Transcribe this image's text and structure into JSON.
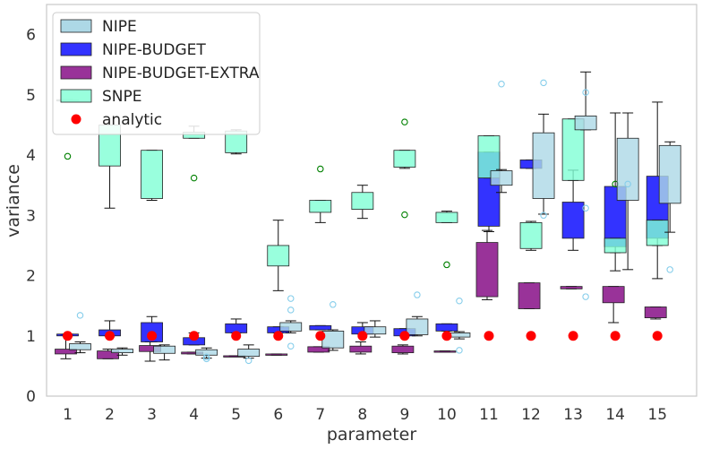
{
  "chart_data": {
    "type": "box",
    "xlabel": "parameter",
    "ylabel": "variance",
    "ylim": [
      0,
      6.5
    ],
    "yticks": [
      0,
      1,
      2,
      3,
      4,
      5,
      6
    ],
    "categories": [
      "1",
      "2",
      "3",
      "4",
      "5",
      "6",
      "7",
      "8",
      "9",
      "10",
      "11",
      "12",
      "13",
      "14",
      "15"
    ],
    "grid": false,
    "legend_position": "top-left",
    "legend": [
      "NIPE",
      "NIPE-BUDGET",
      "NIPE-BUDGET-EXTRA",
      "SNPE",
      "analytic"
    ],
    "colors": {
      "NIPE": "#add8e6",
      "NIPE-BUDGET": "#0000ff",
      "NIPE-BUDGET-EXTRA": "#800080",
      "SNPE": "#7fffd4",
      "analytic": "#ff0000",
      "nipe_flier": "#87ceeb",
      "snpe_flier": "#008000"
    },
    "series": [
      {
        "name": "NIPE",
        "boxes": [
          {
            "wl": 0.72,
            "q1": 0.77,
            "q3": 0.87,
            "wh": 0.9,
            "fliers": [
              1.34
            ]
          },
          {
            "wl": 0.68,
            "q1": 0.72,
            "q3": 0.78,
            "wh": 0.8,
            "fliers": []
          },
          {
            "wl": 0.6,
            "q1": 0.71,
            "q3": 0.83,
            "wh": 0.85,
            "fliers": []
          },
          {
            "wl": 0.63,
            "q1": 0.68,
            "q3": 0.77,
            "wh": 0.8,
            "fliers": [
              0.65,
              0.62
            ]
          },
          {
            "wl": 0.63,
            "q1": 0.66,
            "q3": 0.78,
            "wh": 0.85,
            "fliers": [
              0.59
            ]
          },
          {
            "wl": 1.05,
            "q1": 1.08,
            "q3": 1.22,
            "wh": 1.25,
            "fliers": [
              1.62,
              1.43,
              0.83
            ]
          },
          {
            "wl": 0.76,
            "q1": 0.8,
            "q3": 1.08,
            "wh": 1.1,
            "fliers": [
              1.52
            ]
          },
          {
            "wl": 0.98,
            "q1": 1.03,
            "q3": 1.15,
            "wh": 1.25,
            "fliers": []
          },
          {
            "wl": 1.0,
            "q1": 1.02,
            "q3": 1.28,
            "wh": 1.32,
            "fliers": [
              1.68
            ]
          },
          {
            "wl": 0.95,
            "q1": 0.98,
            "q3": 1.05,
            "wh": 1.07,
            "fliers": [
              1.58,
              0.76
            ]
          },
          {
            "wl": 3.38,
            "q1": 3.5,
            "q3": 3.74,
            "wh": 3.76,
            "fliers": [
              5.18
            ]
          },
          {
            "wl": 3.02,
            "q1": 3.28,
            "q3": 4.37,
            "wh": 4.68,
            "fliers": [
              5.2,
              3.0
            ]
          },
          {
            "wl": 4.42,
            "q1": 4.42,
            "q3": 4.65,
            "wh": 5.38,
            "fliers": [
              5.04,
              3.12,
              1.65
            ]
          },
          {
            "wl": 2.1,
            "q1": 3.25,
            "q3": 4.28,
            "wh": 4.7,
            "fliers": [
              3.52
            ]
          },
          {
            "wl": 2.72,
            "q1": 3.2,
            "q3": 4.16,
            "wh": 4.22,
            "fliers": [
              2.1
            ]
          }
        ]
      },
      {
        "name": "NIPE-BUDGET",
        "boxes": [
          {
            "wl": 1.0,
            "q1": 1.0,
            "q3": 1.03,
            "wh": 1.03,
            "fliers": []
          },
          {
            "wl": 1.0,
            "q1": 1.0,
            "q3": 1.1,
            "wh": 1.25,
            "fliers": []
          },
          {
            "wl": 0.9,
            "q1": 0.9,
            "q3": 1.22,
            "wh": 1.32,
            "fliers": []
          },
          {
            "wl": 0.85,
            "q1": 0.85,
            "q3": 0.97,
            "wh": 1.05,
            "fliers": []
          },
          {
            "wl": 1.05,
            "q1": 1.05,
            "q3": 1.2,
            "wh": 1.28,
            "fliers": []
          },
          {
            "wl": 1.05,
            "q1": 1.05,
            "q3": 1.15,
            "wh": 1.15,
            "fliers": []
          },
          {
            "wl": 1.1,
            "q1": 1.1,
            "q3": 1.17,
            "wh": 1.17,
            "fliers": []
          },
          {
            "wl": 1.03,
            "q1": 1.03,
            "q3": 1.15,
            "wh": 1.22,
            "fliers": []
          },
          {
            "wl": 1.0,
            "q1": 1.0,
            "q3": 1.12,
            "wh": 1.12,
            "fliers": []
          },
          {
            "wl": 1.08,
            "q1": 1.08,
            "q3": 1.2,
            "wh": 1.2,
            "fliers": []
          },
          {
            "wl": 2.73,
            "q1": 2.82,
            "q3": 4.05,
            "wh": 4.05,
            "fliers": []
          },
          {
            "wl": 3.78,
            "q1": 3.78,
            "q3": 3.92,
            "wh": 3.92,
            "fliers": []
          },
          {
            "wl": 2.42,
            "q1": 2.62,
            "q3": 3.22,
            "wh": 3.75,
            "fliers": []
          },
          {
            "wl": 2.08,
            "q1": 2.48,
            "q3": 3.48,
            "wh": 4.7,
            "fliers": []
          },
          {
            "wl": 1.95,
            "q1": 2.62,
            "q3": 3.65,
            "wh": 4.88,
            "fliers": []
          }
        ]
      },
      {
        "name": "NIPE-BUDGET-EXTRA",
        "boxes": [
          {
            "wl": 0.62,
            "q1": 0.7,
            "q3": 0.78,
            "wh": 1.02,
            "fliers": []
          },
          {
            "wl": 0.62,
            "q1": 0.62,
            "q3": 0.75,
            "wh": 0.78,
            "fliers": []
          },
          {
            "wl": 0.58,
            "q1": 0.74,
            "q3": 0.84,
            "wh": 0.9,
            "fliers": []
          },
          {
            "wl": 0.7,
            "q1": 0.7,
            "q3": 0.73,
            "wh": 0.73,
            "fliers": []
          },
          {
            "wl": 0.66,
            "q1": 0.66,
            "q3": 0.67,
            "wh": 0.67,
            "fliers": []
          },
          {
            "wl": 0.68,
            "q1": 0.68,
            "q3": 0.7,
            "wh": 0.7,
            "fliers": []
          },
          {
            "wl": 0.73,
            "q1": 0.73,
            "q3": 0.82,
            "wh": 0.82,
            "fliers": []
          },
          {
            "wl": 0.7,
            "q1": 0.73,
            "q3": 0.83,
            "wh": 0.9,
            "fliers": []
          },
          {
            "wl": 0.7,
            "q1": 0.72,
            "q3": 0.83,
            "wh": 0.85,
            "fliers": []
          },
          {
            "wl": 0.73,
            "q1": 0.73,
            "q3": 0.75,
            "wh": 0.75,
            "fliers": []
          },
          {
            "wl": 1.6,
            "q1": 1.65,
            "q3": 2.55,
            "wh": 2.75,
            "fliers": []
          },
          {
            "wl": 1.45,
            "q1": 1.45,
            "q3": 1.88,
            "wh": 1.88,
            "fliers": []
          },
          {
            "wl": 1.78,
            "q1": 1.78,
            "q3": 1.82,
            "wh": 1.82,
            "fliers": []
          },
          {
            "wl": 1.22,
            "q1": 1.55,
            "q3": 1.82,
            "wh": 1.82,
            "fliers": []
          },
          {
            "wl": 1.28,
            "q1": 1.3,
            "q3": 1.48,
            "wh": 1.48,
            "fliers": []
          }
        ]
      },
      {
        "name": "SNPE",
        "boxes": [
          {
            "wl": 4.92,
            "q1": 4.92,
            "q3": 4.92,
            "wh": 4.92,
            "fliers": [
              3.98
            ]
          },
          {
            "wl": 3.12,
            "q1": 3.82,
            "q3": 4.5,
            "wh": 4.5,
            "fliers": []
          },
          {
            "wl": 3.25,
            "q1": 3.28,
            "q3": 4.08,
            "wh": 4.08,
            "fliers": []
          },
          {
            "wl": 4.28,
            "q1": 4.28,
            "q3": 4.38,
            "wh": 4.48,
            "fliers": [
              3.62
            ]
          },
          {
            "wl": 4.02,
            "q1": 4.04,
            "q3": 4.4,
            "wh": 4.42,
            "fliers": []
          },
          {
            "wl": 1.75,
            "q1": 2.16,
            "q3": 2.5,
            "wh": 2.92,
            "fliers": []
          },
          {
            "wl": 2.88,
            "q1": 3.05,
            "q3": 3.25,
            "wh": 3.25,
            "fliers": [
              3.77
            ]
          },
          {
            "wl": 2.95,
            "q1": 3.1,
            "q3": 3.38,
            "wh": 3.5,
            "fliers": []
          },
          {
            "wl": 3.78,
            "q1": 3.8,
            "q3": 4.08,
            "wh": 4.08,
            "fliers": [
              4.55,
              3.01
            ]
          },
          {
            "wl": 2.88,
            "q1": 2.88,
            "q3": 3.05,
            "wh": 3.07,
            "fliers": [
              2.18
            ]
          },
          {
            "wl": 3.62,
            "q1": 3.62,
            "q3": 4.32,
            "wh": 4.32,
            "fliers": []
          },
          {
            "wl": 2.42,
            "q1": 2.45,
            "q3": 2.88,
            "wh": 2.9,
            "fliers": []
          },
          {
            "wl": 3.58,
            "q1": 3.58,
            "q3": 4.6,
            "wh": 4.6,
            "fliers": []
          },
          {
            "wl": 2.38,
            "q1": 2.38,
            "q3": 2.62,
            "wh": 2.62,
            "fliers": [
              3.52
            ]
          },
          {
            "wl": 2.5,
            "q1": 2.5,
            "q3": 2.92,
            "wh": 2.92,
            "fliers": []
          }
        ]
      }
    ],
    "analytic": [
      1,
      1,
      1,
      1,
      1,
      1,
      1,
      1,
      1,
      1,
      1,
      1,
      1,
      1,
      1
    ]
  }
}
